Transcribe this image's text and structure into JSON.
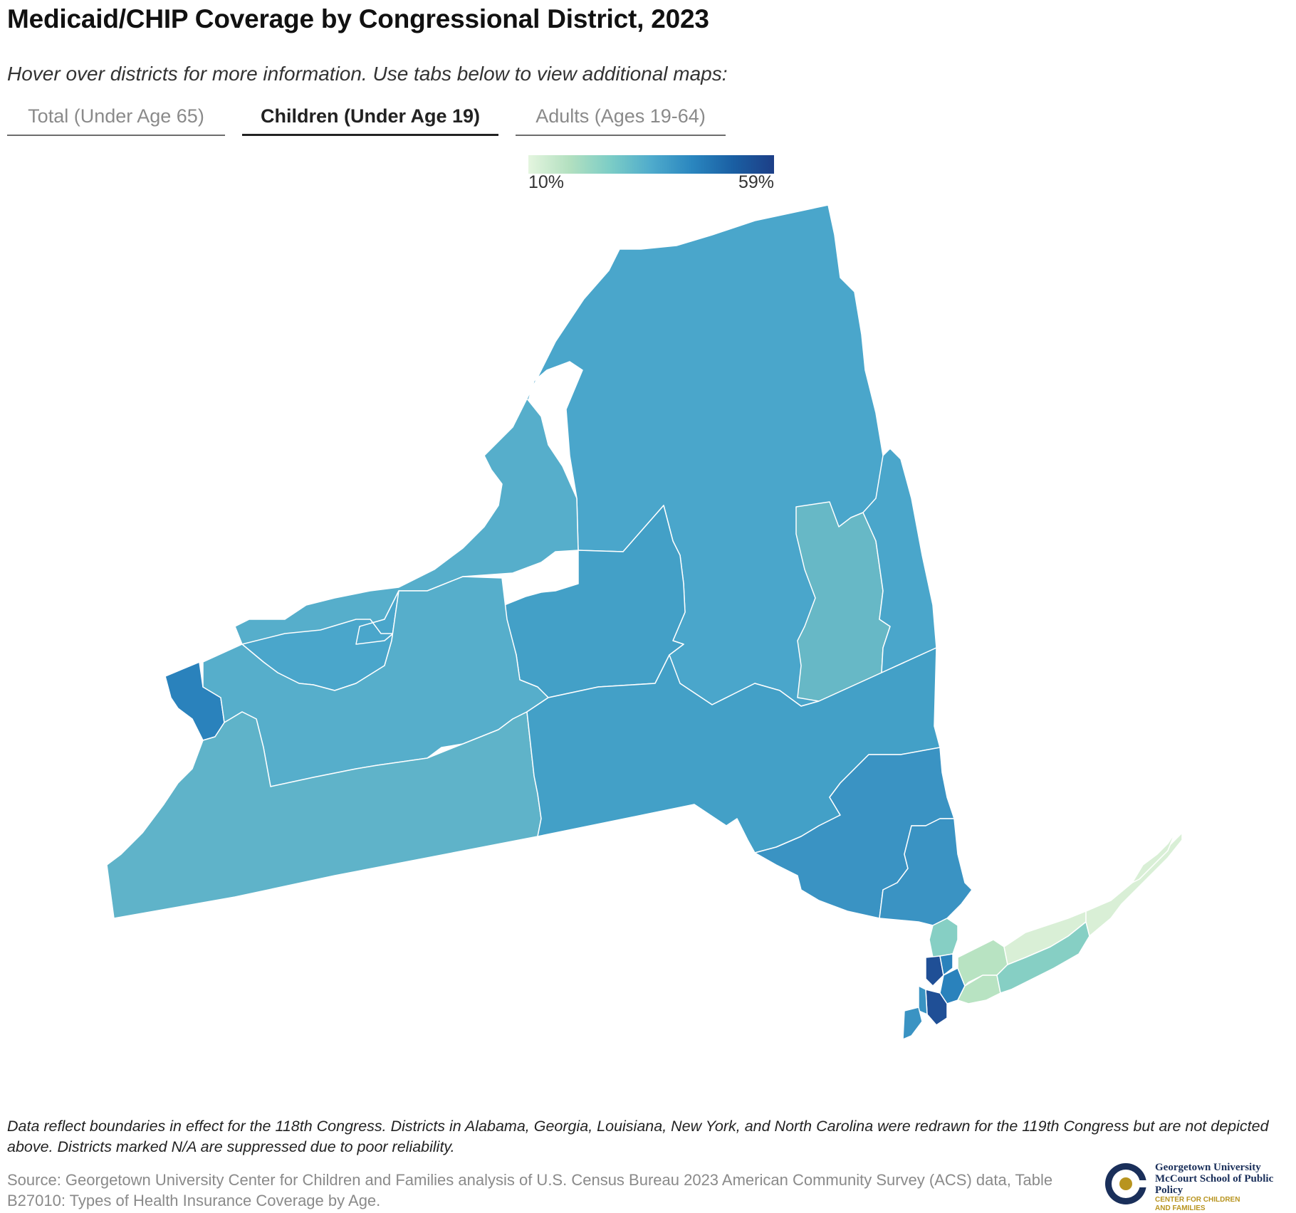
{
  "title": "Medicaid/CHIP Coverage by Congressional District, 2023",
  "subtitle": "Hover over districts for more information. Use tabs below to view additional maps:",
  "tabs": [
    {
      "label": "Total (Under Age 65)",
      "active": false
    },
    {
      "label": "Children (Under Age 19)",
      "active": true
    },
    {
      "label": "Adults (Ages 19-64)",
      "active": false
    }
  ],
  "legend": {
    "min_label": "10%",
    "max_label": "59%",
    "colors": [
      "#e4f5df",
      "#b3e0c0",
      "#7ccdc6",
      "#4fabcc",
      "#2a86bf",
      "#1a5fa3",
      "#1d3f87"
    ]
  },
  "map": {
    "region": "New York",
    "fill_colors": {
      "mid_blue": "#4aa6cb",
      "light_blue": "#5fb3c9",
      "teal": "#67b8c6",
      "steel_blue": "#43a0c7",
      "deep_blue": "#3a93c3",
      "dark_blue": "#2a82bc",
      "navy": "#1f4f96",
      "light_green": "#b8e3c2",
      "pale_green": "#d9efd6",
      "aqua": "#86cfc4"
    }
  },
  "footnote": "Data reflect boundaries in effect for the 118th Congress. Districts in Alabama, Georgia, Louisiana, New York, and North Carolina were redrawn for the 119th Congress but are not depicted above. Districts marked N/A are suppressed due to poor reliability.",
  "source": "Source: Georgetown University Center for Children and Families analysis of U.S. Census Bureau 2023 American Community Survey (ACS) data, Table B27010: Types of Health Insurance Coverage by Age.",
  "logo": {
    "line1": "Georgetown University",
    "line2": "McCourt School of Public Policy",
    "line3": "CENTER FOR CHILDREN",
    "line4": "AND FAMILIES"
  }
}
